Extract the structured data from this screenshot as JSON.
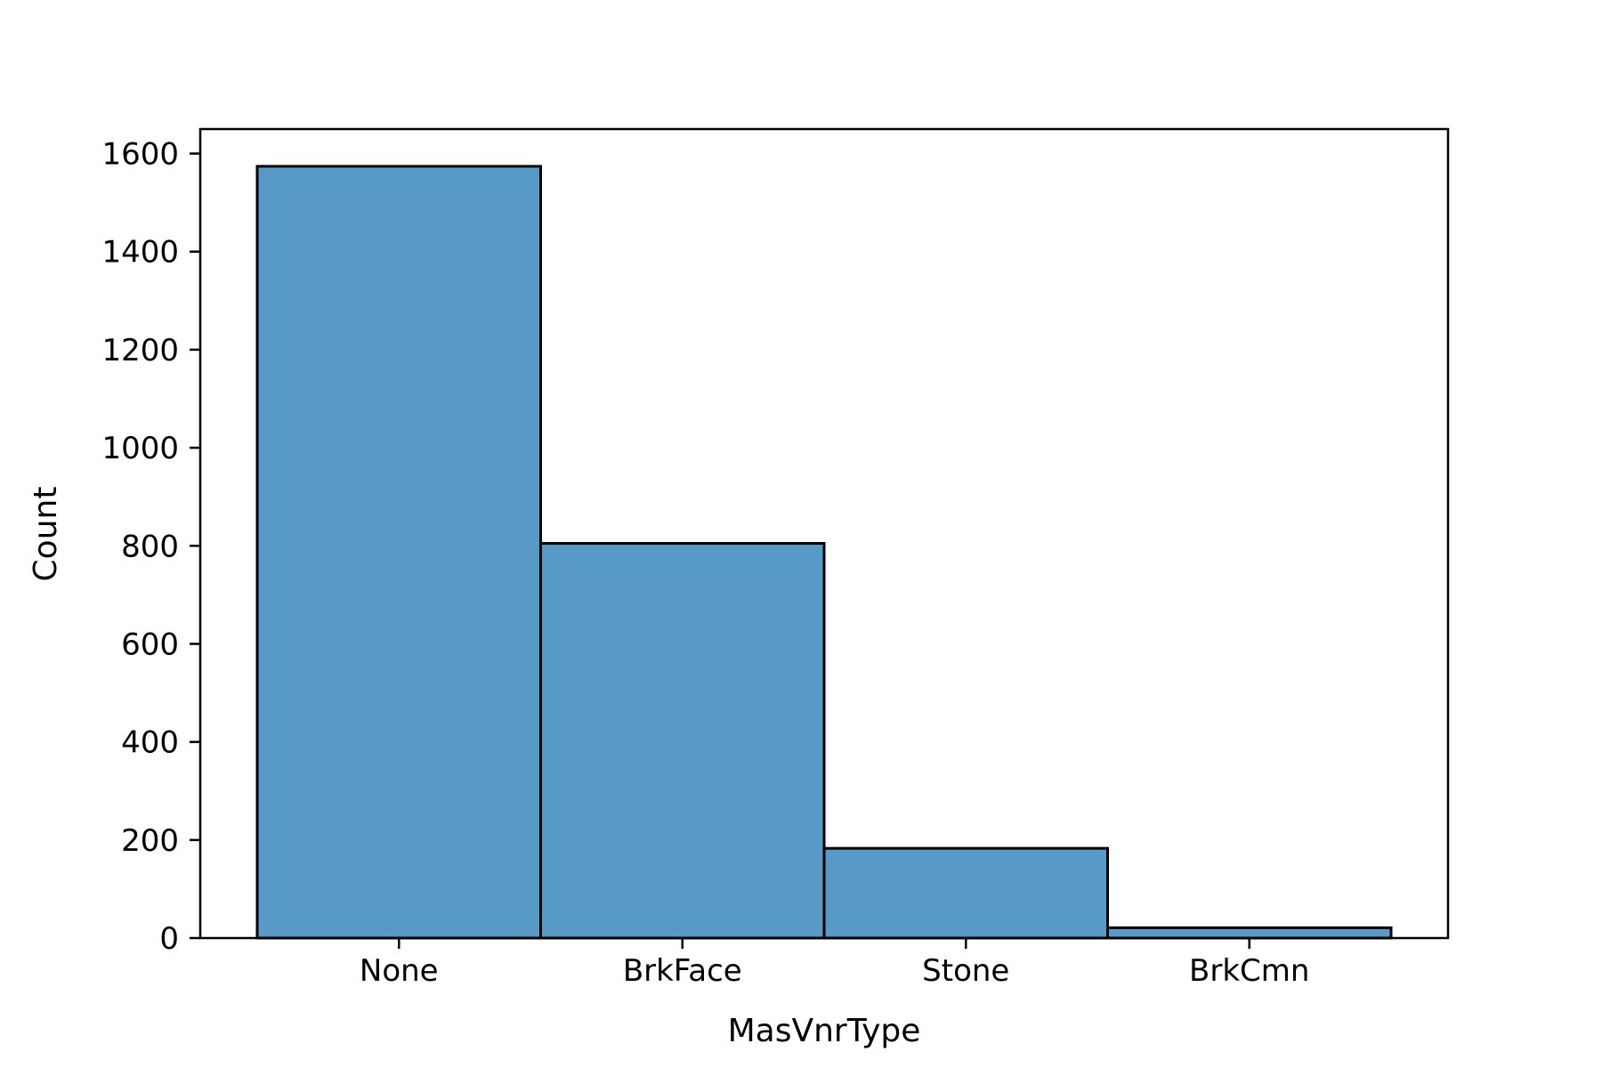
{
  "chart_data": {
    "type": "bar",
    "categories": [
      "None",
      "BrkFace",
      "Stone",
      "BrkCmn"
    ],
    "values": [
      1574,
      805,
      183,
      21
    ],
    "xlabel": "MasVnrType",
    "ylabel": "Count",
    "ylim": [
      0,
      1650
    ],
    "yticks": [
      0,
      200,
      400,
      600,
      800,
      1000,
      1200,
      1400,
      1600
    ],
    "grid": false,
    "bar_color": "#5799c7",
    "edge_color": "#000000"
  }
}
